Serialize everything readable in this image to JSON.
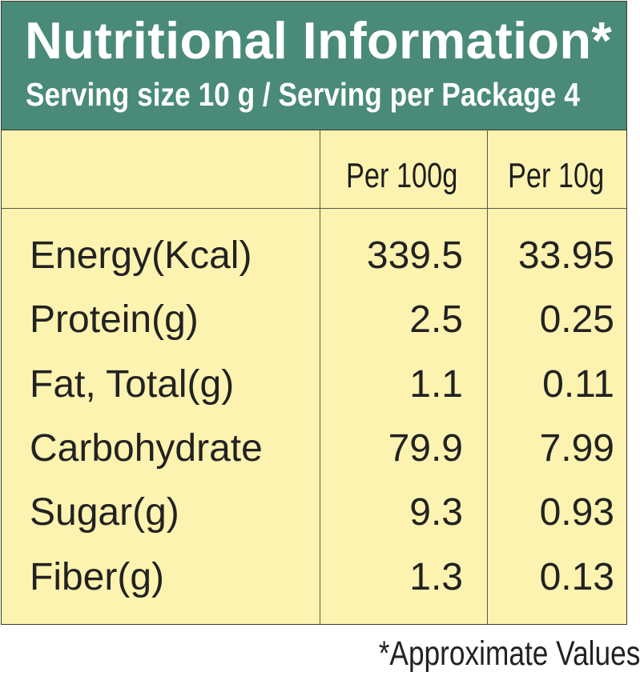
{
  "header": {
    "title": "Nutritional Information*",
    "subtitle": "Serving size 10 g / Serving per Package 4"
  },
  "table": {
    "columns": [
      "",
      "Per 100g",
      "Per 10g"
    ],
    "rows": [
      {
        "label": "Energy(Kcal)",
        "per100g": "339.5",
        "per10g": "33.95"
      },
      {
        "label": "Protein(g)",
        "per100g": "2.5",
        "per10g": "0.25"
      },
      {
        "label": "Fat, Total(g)",
        "per100g": "1.1",
        "per10g": "0.11"
      },
      {
        "label": "Carbohydrate",
        "per100g": "79.9",
        "per10g": "7.99"
      },
      {
        "label": "Sugar(g)",
        "per100g": "9.3",
        "per10g": "0.93"
      },
      {
        "label": "Fiber(g)",
        "per100g": "1.3",
        "per10g": "0.13"
      }
    ]
  },
  "footnote": "*Approximate Values",
  "colors": {
    "header_bg": "#4a8a78",
    "table_bg": "#fdf3b0",
    "text": "#222222"
  }
}
